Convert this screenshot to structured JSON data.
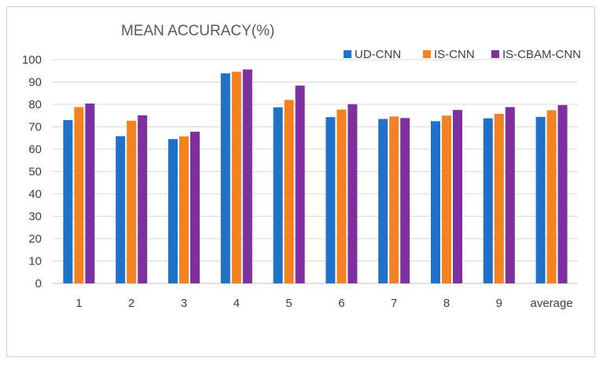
{
  "chart_data": {
    "type": "bar",
    "title": "MEAN ACCURACY(%)",
    "xlabel": "",
    "ylabel": "",
    "ylim": [
      0,
      100
    ],
    "yticks": [
      0,
      10,
      20,
      30,
      40,
      50,
      60,
      70,
      80,
      90,
      100
    ],
    "grid": true,
    "legend_position": "top-right",
    "categories": [
      "1",
      "2",
      "3",
      "4",
      "5",
      "6",
      "7",
      "8",
      "9",
      "average"
    ],
    "series": [
      {
        "name": "UD-CNN",
        "color": "#1F72C8",
        "values": [
          73.0,
          65.8,
          64.5,
          93.9,
          78.7,
          74.3,
          73.5,
          72.5,
          73.8,
          74.4
        ]
      },
      {
        "name": "IS-CNN",
        "color": "#F58220",
        "values": [
          78.8,
          72.7,
          65.7,
          94.6,
          82.0,
          77.7,
          74.6,
          75.0,
          75.8,
          77.4
        ]
      },
      {
        "name": "IS-CBAM-CNN",
        "color": "#7E2FA0",
        "values": [
          80.4,
          75.1,
          67.8,
          95.6,
          88.4,
          80.1,
          73.9,
          77.5,
          78.8,
          79.7
        ]
      }
    ]
  }
}
